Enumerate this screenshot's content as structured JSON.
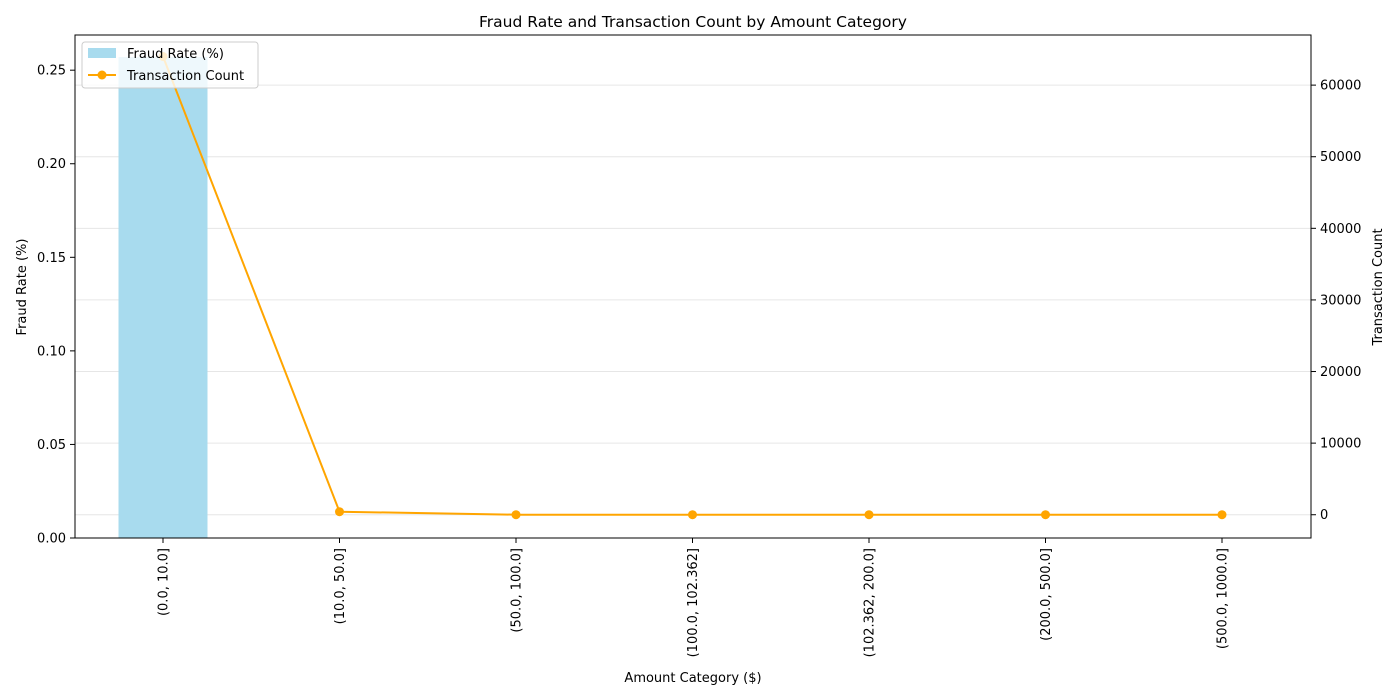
{
  "chart_data": {
    "type": "bar",
    "title": "Fraud Rate and Transaction Count by Amount Category",
    "xlabel": "Amount Category ($)",
    "ylabel": "Fraud Rate (%)",
    "y2label": "Transaction Count",
    "categories": [
      "(0.0, 10.0]",
      "(10.0, 50.0]",
      "(50.0, 100.0]",
      "(100.0, 102.362]",
      "(102.362, 200.0]",
      "(200.0, 500.0]",
      "(500.0, 1000.0]"
    ],
    "ylim": [
      0,
      0.2688
    ],
    "y2lim": [
      -3250,
      67000
    ],
    "yticks": [
      0.0,
      0.05,
      0.1,
      0.15,
      0.2,
      0.25
    ],
    "ytick_labels": [
      "0.00",
      "0.05",
      "0.10",
      "0.15",
      "0.20",
      "0.25"
    ],
    "y2ticks": [
      0,
      10000,
      20000,
      30000,
      40000,
      50000,
      60000
    ],
    "y2tick_labels": [
      "0",
      "10000",
      "20000",
      "30000",
      "40000",
      "50000",
      "60000"
    ],
    "grid": true,
    "legend_position": "top-left",
    "series": [
      {
        "name": "Fraud Rate (%)",
        "type": "bar",
        "axis": "left",
        "color": "#a8dbee",
        "values": [
          0.257,
          0,
          0,
          0,
          0,
          0,
          0
        ]
      },
      {
        "name": "Transaction Count",
        "type": "line",
        "axis": "right",
        "color": "#ffa500",
        "values": [
          64000,
          420,
          5,
          0,
          0,
          0,
          0
        ]
      }
    ]
  }
}
